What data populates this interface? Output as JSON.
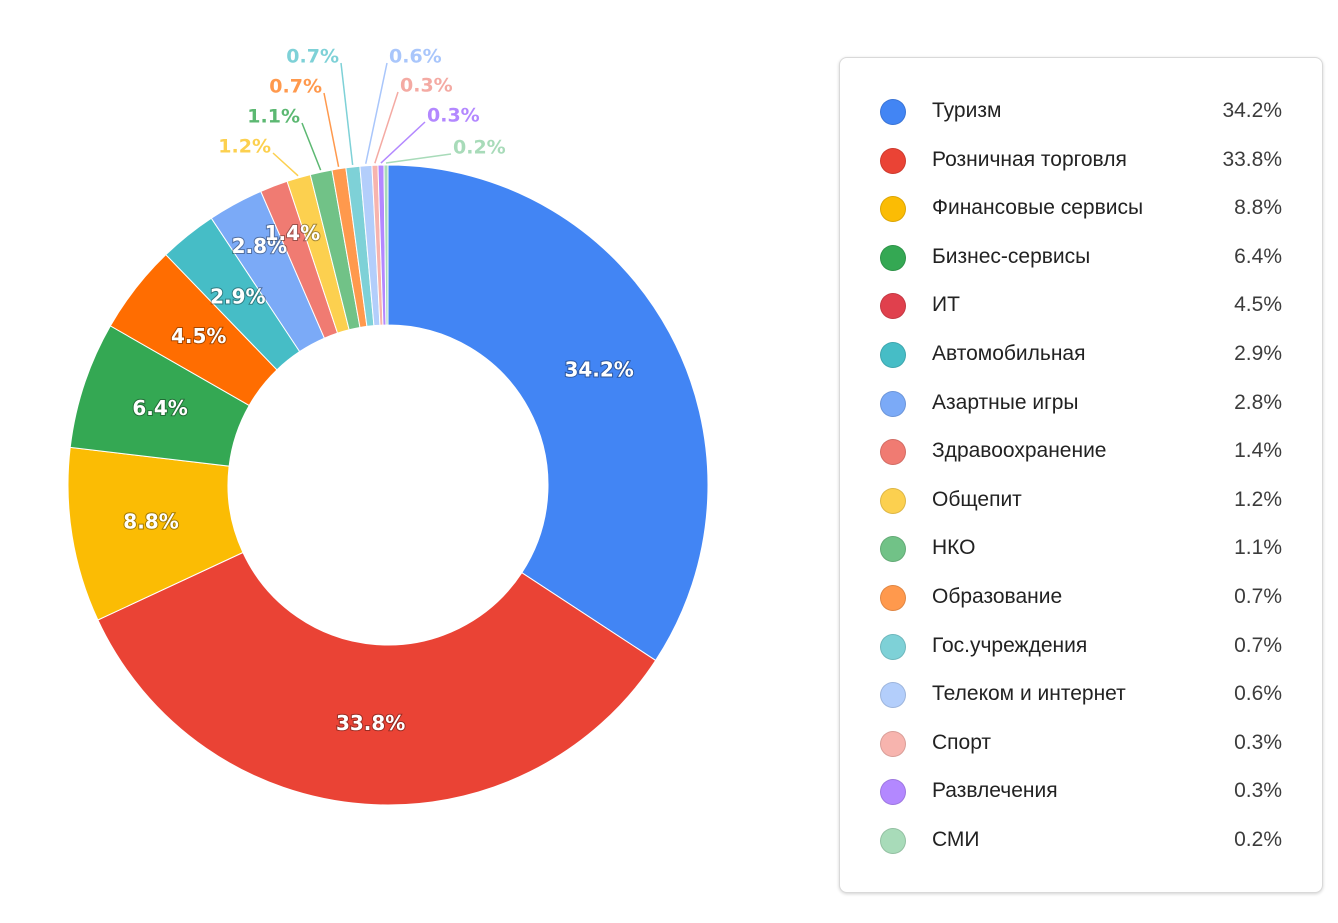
{
  "chart_data": {
    "type": "pie",
    "variant": "donut",
    "legend_position": "right",
    "categories": [
      "Туризм",
      "Розничная торговля",
      "Финансовые сервисы",
      "Бизнес-сервисы",
      "ИТ",
      "Автомобильная",
      "Азартные игры",
      "Здравоохранение",
      "Общепит",
      "НКО",
      "Образование",
      "Гос.учреждения",
      "Телеком и интернет",
      "Спорт",
      "Развлечения",
      "СМИ"
    ],
    "values": [
      34.2,
      33.8,
      8.8,
      6.4,
      4.5,
      2.9,
      2.8,
      1.4,
      1.2,
      1.1,
      0.7,
      0.7,
      0.6,
      0.3,
      0.3,
      0.2
    ],
    "value_labels": [
      "34.2%",
      "33.8%",
      "8.8%",
      "6.4%",
      "4.5%",
      "2.9%",
      "2.8%",
      "1.4%",
      "1.2%",
      "1.1%",
      "0.7%",
      "0.7%",
      "0.6%",
      "0.3%",
      "0.3%",
      "0.2%"
    ],
    "colors": [
      "#4285f4",
      "#ea4335",
      "#fbbc04",
      "#34a853",
      "#e0404d",
      "#46bdc6",
      "#7baaf7",
      "#f07b72",
      "#fcd04f",
      "#71c287",
      "#ff994d",
      "#7ed1d7",
      "#b3cefb",
      "#f7b4ae",
      "#b388ff",
      "#a8dbb9"
    ],
    "label_colors": [
      "#ffffff",
      "#ffffff",
      "#ffffff",
      "#ffffff",
      "#ffffff",
      "#ffffff",
      "#ffffff",
      "#ffffff",
      "#fcd04f",
      "#5cb872",
      "#ff994d",
      "#7ed1d7",
      "#a9c6fb",
      "#f4aaa3",
      "#b388ff",
      "#a8dbb9"
    ],
    "slice_fill_colors": [
      "#4285f4",
      "#ea4335",
      "#fbbc04",
      "#34a853",
      "#ff6d01",
      "#46bdc6",
      "#7baaf7",
      "#f07b72",
      "#fcd04f",
      "#71c287",
      "#ff994d",
      "#7ed1d7",
      "#b3cefb",
      "#f7b4ae",
      "#b388ff",
      "#a8dbb9"
    ],
    "title": ""
  }
}
